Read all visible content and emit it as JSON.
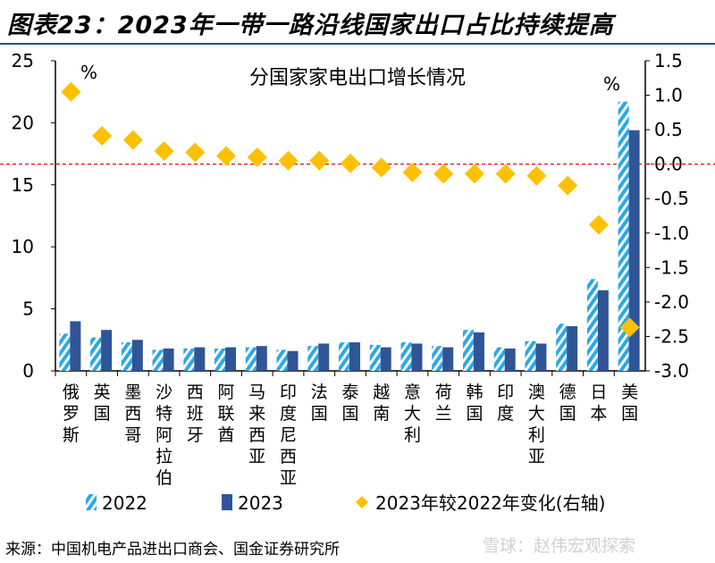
{
  "title": "图表23：2023年一带一路沿线国家出口占比持续提高",
  "source": "来源：中国机电产品进出口商会、国金证券研究所",
  "watermark": "雪球：赵伟宏观探索",
  "chart_data": {
    "type": "bar",
    "title": "分国家家电出口增长情况",
    "left_unit": "%",
    "right_unit": "%",
    "ylim": [
      0,
      25
    ],
    "y_ticks": [
      "0",
      "5",
      "10",
      "15",
      "20",
      "25"
    ],
    "y2lim": [
      -3.0,
      1.5
    ],
    "y2_ticks": [
      "-3.0",
      "-2.5",
      "-2.0",
      "-1.5",
      "-1.0",
      "-0.5",
      "0.0",
      "0.5",
      "1.0",
      "1.5"
    ],
    "categories": [
      "俄罗斯",
      "英国",
      "墨西哥",
      "沙特阿拉伯",
      "西班牙",
      "阿联酋",
      "马来西亚",
      "印度尼西亚",
      "法国",
      "泰国",
      "越南",
      "意大利",
      "荷兰",
      "韩国",
      "印度",
      "澳大利亚",
      "德国",
      "日本",
      "美国"
    ],
    "series": [
      {
        "name": "2022",
        "type": "bar",
        "axis": "left",
        "color": "#29a9e8",
        "pattern": "hatched",
        "values": [
          3.0,
          2.7,
          2.3,
          1.7,
          1.8,
          1.8,
          1.9,
          1.7,
          2.0,
          2.3,
          2.1,
          2.3,
          2.0,
          3.3,
          1.9,
          2.4,
          3.8,
          7.4,
          21.7
        ]
      },
      {
        "name": "2023",
        "type": "bar",
        "axis": "left",
        "color": "#2f5597",
        "values": [
          4.0,
          3.3,
          2.5,
          1.8,
          1.9,
          1.9,
          2.0,
          1.6,
          2.2,
          2.3,
          1.9,
          2.2,
          1.9,
          3.1,
          1.8,
          2.2,
          3.6,
          6.5,
          19.4
        ]
      },
      {
        "name": "2023年较2022年变化(右轴)",
        "type": "scatter",
        "axis": "right",
        "color": "#ffc000",
        "marker": "diamond",
        "values": [
          1.05,
          0.41,
          0.35,
          0.19,
          0.17,
          0.12,
          0.1,
          0.05,
          0.05,
          0.01,
          -0.05,
          -0.12,
          -0.14,
          -0.14,
          -0.14,
          -0.17,
          -0.31,
          -0.88,
          -2.37
        ]
      }
    ],
    "reference_line": {
      "axis": "right",
      "value": 0.0,
      "color": "#e02020",
      "style": "dashed"
    },
    "legend_position": "bottom",
    "grid": false
  }
}
